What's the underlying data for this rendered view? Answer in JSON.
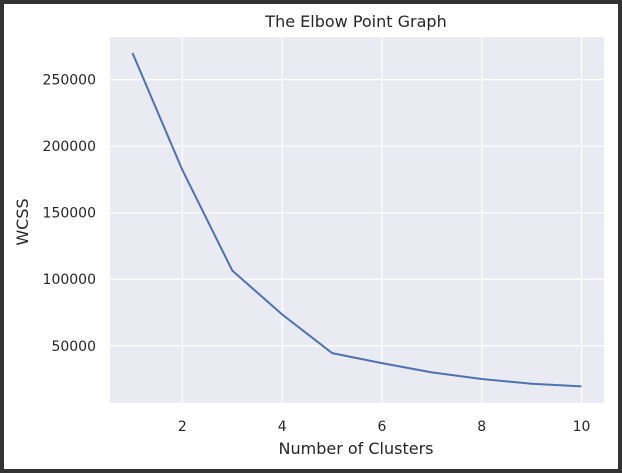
{
  "chart_data": {
    "type": "line",
    "title": "The Elbow Point Graph",
    "xlabel": "Number of Clusters",
    "ylabel": "WCSS",
    "x": [
      1,
      2,
      3,
      4,
      5,
      6,
      7,
      8,
      9,
      10
    ],
    "series": [
      {
        "values": [
          270000,
          182000,
          106500,
          73500,
          44500,
          37000,
          30000,
          25000,
          21500,
          19500
        ],
        "color": "#4c72b0"
      }
    ],
    "xticks": [
      "2",
      "4",
      "6",
      "8",
      "10"
    ],
    "yticks": [
      "50000",
      "100000",
      "150000",
      "200000",
      "250000"
    ],
    "xlim": [
      0.55,
      10.45
    ],
    "ylim": [
      7000,
      282000
    ],
    "grid": true,
    "style": {
      "plot_background": "#eaeaf2",
      "grid_color": "#ffffff"
    }
  }
}
